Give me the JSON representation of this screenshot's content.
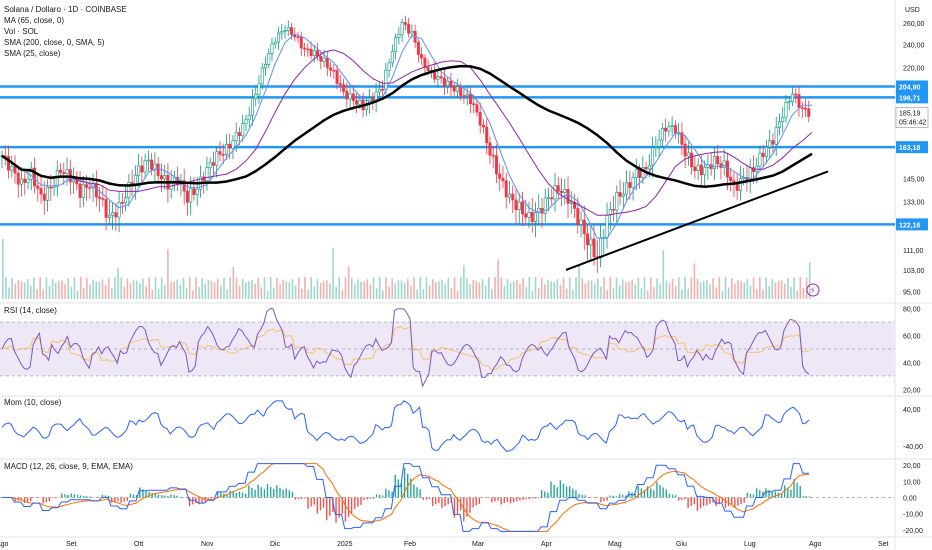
{
  "chart_data": {
    "type": "candlestick",
    "symbol_title": "Solana / Dollaro · 1D · COINBASE",
    "indicators": [
      "MA (65, close, 0)",
      "Vol · SOL",
      "SMA (200, close, 0, SMA, 5)",
      "SMA (25, close)"
    ],
    "currency": "USD",
    "price_ticks": [
      "260,00",
      "240,00",
      "220,00",
      "204,90",
      "196,71",
      "185,19",
      "05:46:42",
      "163,18",
      "145,00",
      "133,00",
      "122,16",
      "111,00",
      "103,00",
      "95,00"
    ],
    "price_tick_values": [
      260,
      240,
      220,
      204.9,
      196.71,
      185.19,
      null,
      163.18,
      145,
      133,
      122.16,
      111,
      103,
      95
    ],
    "x_labels": [
      "Ago",
      "Set",
      "Ott",
      "Nov",
      "Dic",
      "2025",
      "Feb",
      "Mar",
      "Apr",
      "Mag",
      "Giu",
      "Lug",
      "Ago",
      "Set"
    ],
    "horizontal_levels": [
      204.9,
      196.71,
      163.18,
      122.16
    ],
    "level_badges": [
      "204,90",
      "196,71",
      "163,18",
      "122,16"
    ],
    "current_price": "185,19",
    "countdown": "05:46:42",
    "close_series_approx": [
      158,
      150,
      142,
      148,
      135,
      140,
      150,
      146,
      138,
      142,
      135,
      125,
      130,
      140,
      150,
      155,
      148,
      142,
      145,
      135,
      140,
      150,
      158,
      162,
      170,
      180,
      200,
      225,
      245,
      255,
      248,
      235,
      232,
      225,
      215,
      200,
      195,
      190,
      196,
      205,
      235,
      260,
      250,
      225,
      215,
      210,
      205,
      200,
      195,
      180,
      160,
      145,
      135,
      130,
      125,
      128,
      135,
      140,
      135,
      125,
      115,
      108,
      125,
      135,
      140,
      148,
      150,
      165,
      176,
      175,
      160,
      150,
      150,
      155,
      152,
      140,
      145,
      150,
      160,
      168,
      185,
      200,
      188,
      185
    ],
    "rsi": {
      "title": "RSI (14, close)",
      "ticks": [
        "80,00",
        "60,00",
        "40,00",
        "20,00"
      ],
      "band": [
        30,
        70
      ],
      "ylim": [
        18,
        82
      ]
    },
    "momentum": {
      "title": "Mom (10, close)",
      "ticks": [
        "40,00",
        "-40,00"
      ],
      "ylim": [
        -60,
        60
      ]
    },
    "macd": {
      "title": "MACD (12, 26, close, 9, EMA, EMA)",
      "ticks": [
        "20,00",
        "10,00",
        "0,00",
        "-10,00",
        "-20,00"
      ],
      "ylim": [
        -22,
        22
      ]
    }
  }
}
